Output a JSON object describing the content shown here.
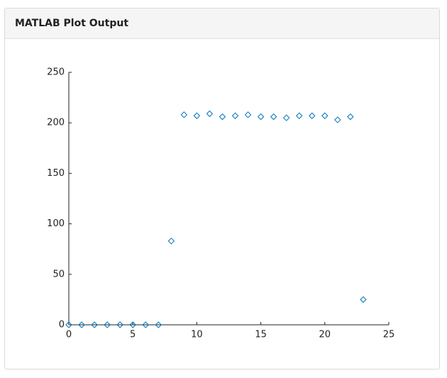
{
  "header": {
    "title": "MATLAB Plot Output"
  },
  "chart_data": {
    "type": "scatter",
    "marker": "diamond",
    "color": "#0072bd",
    "x": [
      0,
      1,
      2,
      3,
      4,
      5,
      6,
      7,
      8,
      9,
      10,
      11,
      12,
      13,
      14,
      15,
      16,
      17,
      18,
      19,
      20,
      21,
      22,
      23
    ],
    "values": [
      0,
      0,
      0,
      0,
      0,
      0,
      0,
      0,
      83,
      208,
      207,
      209,
      206,
      207,
      208,
      206,
      206,
      205,
      207,
      207,
      207,
      203,
      206,
      25
    ],
    "xlim": [
      0,
      25
    ],
    "xticks": [
      0,
      5,
      10,
      15,
      20,
      25
    ],
    "ylim": [
      0,
      250
    ],
    "yticks": [
      0,
      50,
      100,
      150,
      200,
      250
    ]
  }
}
